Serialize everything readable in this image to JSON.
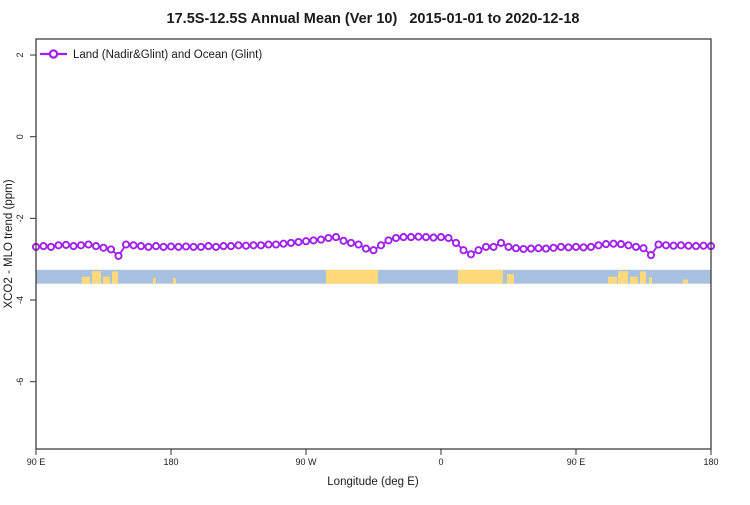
{
  "title": "17.5S-12.5S Annual Mean (Ver 10)   2015-01-01 to 2020-12-18",
  "legend": {
    "label": "Land (Nadir&Glint) and Ocean (Glint)"
  },
  "colors": {
    "series": "#A020F0",
    "marker_fill": "#ffffff",
    "ocean": "#A8C1E0",
    "land": "#FFD97A",
    "axis": "#303030",
    "background": "#ffffff"
  },
  "chart_data": {
    "type": "line",
    "title": "17.5S-12.5S Annual Mean (Ver 10)   2015-01-01 to 2020-12-18",
    "xlabel": "Longitude (deg E)",
    "ylabel": "XCO2 - MLO trend (ppm)",
    "legend_position": "top-left",
    "grid": false,
    "ylim": [
      -7.7,
      2.4
    ],
    "x_axis_wraps_globe": "axis spans 450 deg: 90E eastward to 180, repeating 90E-180 at right edge",
    "x_ticks": [
      {
        "deg": 90,
        "label": "90 E"
      },
      {
        "deg": 180,
        "label": "180"
      },
      {
        "deg": 270,
        "label": "90 W"
      },
      {
        "deg": 360,
        "label": "0"
      },
      {
        "deg": 450,
        "label": "90 E"
      },
      {
        "deg": 540,
        "label": "180"
      }
    ],
    "y_ticks": [
      {
        "value": 2,
        "label": "2"
      },
      {
        "value": 0,
        "label": "0"
      },
      {
        "value": -2,
        "label": "-2"
      },
      {
        "value": -4,
        "label": "-4"
      },
      {
        "value": -6,
        "label": "-6"
      }
    ],
    "x": [
      90,
      95,
      100,
      105,
      110,
      115,
      120,
      125,
      130,
      135,
      140,
      145,
      150,
      155,
      160,
      165,
      170,
      175,
      180,
      185,
      190,
      195,
      200,
      205,
      210,
      215,
      220,
      225,
      230,
      235,
      240,
      245,
      250,
      255,
      260,
      265,
      270,
      275,
      280,
      285,
      290,
      295,
      300,
      305,
      310,
      315,
      320,
      325,
      330,
      335,
      340,
      345,
      350,
      355,
      360,
      365,
      370,
      375,
      380,
      385,
      390,
      395,
      400,
      405,
      410,
      415,
      420,
      425,
      430,
      435,
      440,
      445,
      450,
      455,
      460,
      465,
      470,
      475,
      480,
      485,
      490,
      495,
      500,
      505,
      510,
      515,
      520,
      525,
      530,
      535,
      540
    ],
    "series": [
      {
        "name": "Land (Nadir&Glint) and Ocean (Glint)",
        "values": [
          -2.7,
          -2.68,
          -2.7,
          -2.66,
          -2.65,
          -2.68,
          -2.66,
          -2.64,
          -2.68,
          -2.72,
          -2.76,
          -2.92,
          -2.64,
          -2.66,
          -2.68,
          -2.7,
          -2.68,
          -2.7,
          -2.69,
          -2.7,
          -2.69,
          -2.7,
          -2.7,
          -2.68,
          -2.7,
          -2.68,
          -2.68,
          -2.66,
          -2.67,
          -2.66,
          -2.66,
          -2.64,
          -2.64,
          -2.62,
          -2.6,
          -2.58,
          -2.56,
          -2.54,
          -2.52,
          -2.48,
          -2.46,
          -2.55,
          -2.6,
          -2.64,
          -2.74,
          -2.78,
          -2.66,
          -2.54,
          -2.48,
          -2.46,
          -2.46,
          -2.45,
          -2.46,
          -2.47,
          -2.46,
          -2.48,
          -2.6,
          -2.78,
          -2.88,
          -2.78,
          -2.7,
          -2.7,
          -2.6,
          -2.7,
          -2.73,
          -2.75,
          -2.74,
          -2.73,
          -2.74,
          -2.72,
          -2.7,
          -2.71,
          -2.7,
          -2.71,
          -2.7,
          -2.66,
          -2.63,
          -2.62,
          -2.63,
          -2.66,
          -2.7,
          -2.73,
          -2.9,
          -2.64,
          -2.66,
          -2.67,
          -2.66,
          -2.67,
          -2.68,
          -2.67,
          -2.68
        ]
      }
    ],
    "map_strip": {
      "description": "land/ocean strip for latitude band 17.5S-12.5S",
      "band_top_value": -3.26,
      "band_bottom_value": -3.6,
      "land_segments": [
        {
          "from": 120.5,
          "to": 126.0,
          "inset": 0.5
        },
        {
          "from": 127.3,
          "to": 133.3,
          "inset": 0.1
        },
        {
          "from": 134.7,
          "to": 139.3,
          "inset": 0.5
        },
        {
          "from": 140.7,
          "to": 144.7,
          "inset": 0.12
        },
        {
          "from": 168.0,
          "to": 170.0,
          "inset": 0.6
        },
        {
          "from": 181.3,
          "to": 183.3,
          "inset": 0.6
        },
        {
          "from": 283.3,
          "to": 318.0,
          "inset": 0.0
        },
        {
          "from": 371.3,
          "to": 401.3,
          "inset": 0.0
        },
        {
          "from": 404.0,
          "to": 408.7,
          "inset": 0.3
        },
        {
          "from": 471.3,
          "to": 477.3,
          "inset": 0.5
        },
        {
          "from": 478.0,
          "to": 484.7,
          "inset": 0.1
        },
        {
          "from": 486.0,
          "to": 491.3,
          "inset": 0.5
        },
        {
          "from": 492.7,
          "to": 496.7,
          "inset": 0.12
        },
        {
          "from": 498.7,
          "to": 500.7,
          "inset": 0.55
        },
        {
          "from": 521.3,
          "to": 524.7,
          "inset": 0.7
        }
      ]
    }
  }
}
